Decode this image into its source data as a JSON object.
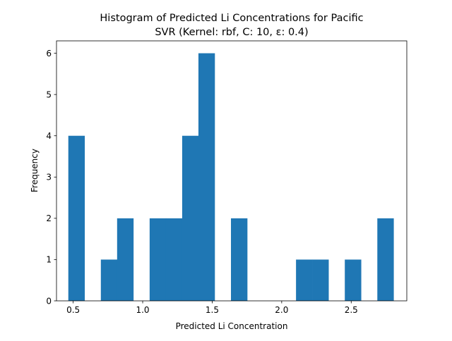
{
  "chart_data": {
    "type": "bar",
    "title_line1": "Histogram of Predicted Li Concentrations for Pacific",
    "title_line2": "SVR (Kernel: rbf, C: 10, ε: 0.4)",
    "xlabel": "Predicted Li Concentration",
    "ylabel": "Frequency",
    "xlim": [
      0.38,
      2.9
    ],
    "ylim": [
      0,
      6.3
    ],
    "xticks": [
      0.5,
      1.0,
      1.5,
      2.0,
      2.5
    ],
    "xtick_labels": [
      "0.5",
      "1.0",
      "1.5",
      "2.0",
      "2.5"
    ],
    "yticks": [
      0,
      1,
      2,
      3,
      4,
      5,
      6
    ],
    "ytick_labels": [
      "0",
      "1",
      "2",
      "3",
      "4",
      "5",
      "6"
    ],
    "bar_color": "#1f77b4",
    "bins": [
      {
        "x0": 0.465,
        "x1": 0.582,
        "count": 4
      },
      {
        "x0": 0.582,
        "x1": 0.699,
        "count": 0
      },
      {
        "x0": 0.699,
        "x1": 0.816,
        "count": 1
      },
      {
        "x0": 0.816,
        "x1": 0.933,
        "count": 2
      },
      {
        "x0": 0.933,
        "x1": 1.05,
        "count": 0
      },
      {
        "x0": 1.05,
        "x1": 1.167,
        "count": 2
      },
      {
        "x0": 1.167,
        "x1": 1.284,
        "count": 2
      },
      {
        "x0": 1.284,
        "x1": 1.401,
        "count": 4
      },
      {
        "x0": 1.401,
        "x1": 1.518,
        "count": 6
      },
      {
        "x0": 1.518,
        "x1": 1.635,
        "count": 0
      },
      {
        "x0": 1.635,
        "x1": 1.752,
        "count": 2
      },
      {
        "x0": 1.752,
        "x1": 1.869,
        "count": 0
      },
      {
        "x0": 1.869,
        "x1": 1.986,
        "count": 0
      },
      {
        "x0": 1.986,
        "x1": 2.103,
        "count": 0
      },
      {
        "x0": 2.103,
        "x1": 2.22,
        "count": 1
      },
      {
        "x0": 2.22,
        "x1": 2.337,
        "count": 1
      },
      {
        "x0": 2.337,
        "x1": 2.454,
        "count": 0
      },
      {
        "x0": 2.454,
        "x1": 2.571,
        "count": 1
      },
      {
        "x0": 2.571,
        "x1": 2.688,
        "count": 0
      },
      {
        "x0": 2.688,
        "x1": 2.805,
        "count": 2
      }
    ],
    "grid": false,
    "legend": "none"
  }
}
